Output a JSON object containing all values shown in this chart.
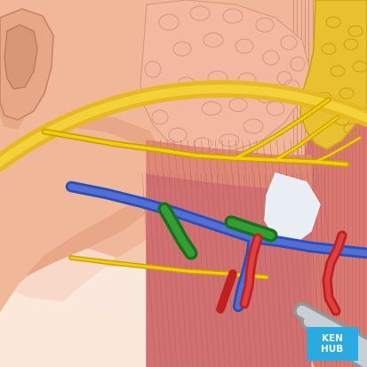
{
  "figure_size": [
    4.13,
    4.13
  ],
  "dpi": 100,
  "bg_skin": "#f2c8b0",
  "neck_skin": "#f0c0a8",
  "ear_color": "#e8aa88",
  "ear_shadow": "#d09070",
  "jaw_skin": "#f0b898",
  "parotid_color": "#f0b8a0",
  "parotid_lobe_edge": "#d8988a",
  "muscle_main": "#d87870",
  "muscle_fiber": "#c06860",
  "muscle_light": "#e89080",
  "fascia_yellow": "#e8b820",
  "fascia_inner": "#f5d840",
  "vein_blue_dark": "#2850b8",
  "vein_blue_light": "#5070d8",
  "artery_red_dark": "#c02020",
  "artery_red_light": "#e04040",
  "nerve_yellow_dark": "#c8a000",
  "nerve_yellow_light": "#f5d000",
  "green_dark": "#1a7020",
  "green_light": "#30a030",
  "white_tendon": "#d8dce8",
  "fat_yellow": "#e8c830",
  "kenhub_blue": "#29abe2",
  "kenhub_text": "KEN\nHUB"
}
